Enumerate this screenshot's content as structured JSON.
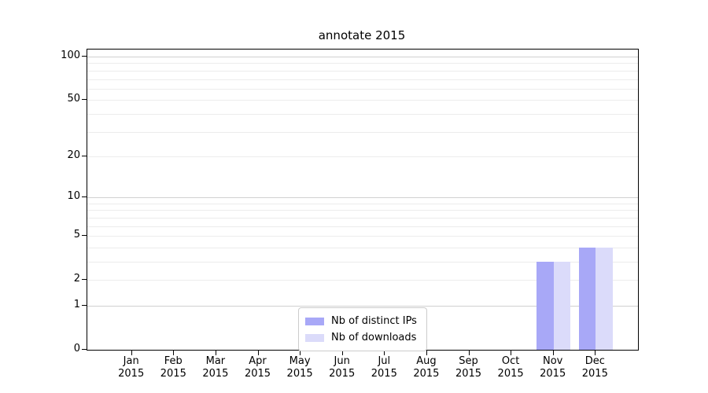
{
  "figure": {
    "title": "annotate 2015"
  },
  "chart_data": {
    "type": "bar",
    "title": "annotate 2015",
    "xlabel": "",
    "ylabel": "",
    "categories": [
      "Jan 2015",
      "Feb 2015",
      "Mar 2015",
      "Apr 2015",
      "May 2015",
      "Jun 2015",
      "Jul 2015",
      "Aug 2015",
      "Sep 2015",
      "Oct 2015",
      "Nov 2015",
      "Dec 2015"
    ],
    "category_lines": [
      {
        "month": "Jan",
        "year": "2015"
      },
      {
        "month": "Feb",
        "year": "2015"
      },
      {
        "month": "Mar",
        "year": "2015"
      },
      {
        "month": "Apr",
        "year": "2015"
      },
      {
        "month": "May",
        "year": "2015"
      },
      {
        "month": "Jun",
        "year": "2015"
      },
      {
        "month": "Jul",
        "year": "2015"
      },
      {
        "month": "Aug",
        "year": "2015"
      },
      {
        "month": "Sep",
        "year": "2015"
      },
      {
        "month": "Oct",
        "year": "2015"
      },
      {
        "month": "Nov",
        "year": "2015"
      },
      {
        "month": "Dec",
        "year": "2015"
      }
    ],
    "series": [
      {
        "name": "Nb of distinct IPs",
        "color": "#a8a8f7",
        "values": [
          0,
          0,
          0,
          0,
          0,
          0,
          0,
          0,
          0,
          0,
          3,
          4
        ]
      },
      {
        "name": "Nb of downloads",
        "color": "#dbdbfa",
        "values": [
          0,
          0,
          0,
          0,
          0,
          0,
          0,
          0,
          0,
          0,
          3,
          4
        ]
      }
    ],
    "yscale": "log1p",
    "ylim": [
      0,
      112
    ],
    "yticks": {
      "values": [
        0,
        1,
        2,
        5,
        10,
        20,
        50,
        100
      ],
      "labels": [
        "0",
        "1",
        "2",
        "5",
        "10",
        "20",
        "50",
        "100"
      ]
    },
    "major_gridlines": [
      1,
      10,
      100
    ],
    "minor_gridlines": [
      2,
      3,
      4,
      5,
      6,
      7,
      8,
      9,
      20,
      30,
      40,
      50,
      60,
      70,
      80,
      90
    ],
    "grid": "horizontal",
    "legend": {
      "position": "lower center",
      "entries": [
        "Nb of distinct IPs",
        "Nb of downloads"
      ]
    },
    "colors": {
      "major_grid": "#d0d0d0",
      "minor_grid": "#ececec",
      "axis": "#000000",
      "background": "#ffffff"
    }
  }
}
